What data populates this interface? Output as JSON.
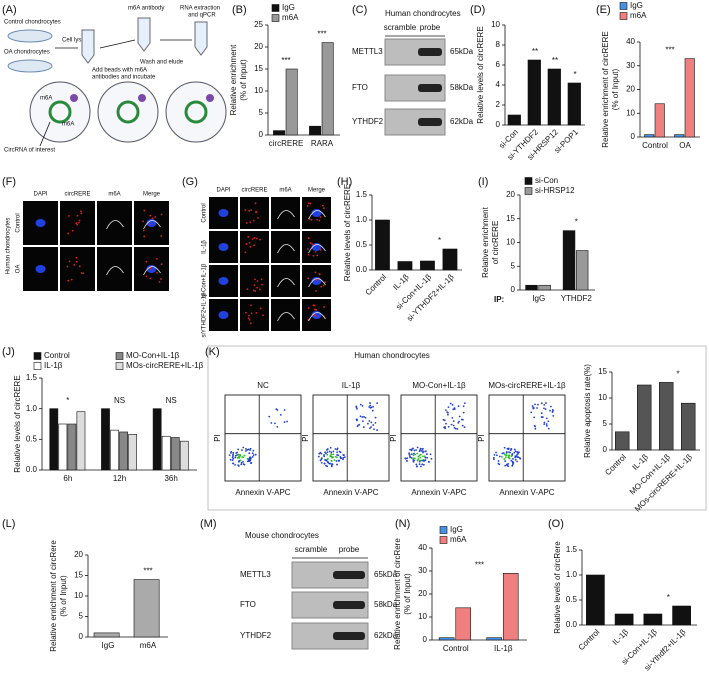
{
  "schematic": {
    "panel": "(A)",
    "labels": {
      "control": "Control chondrocytes",
      "oa": "OA chondrocytes",
      "lysates": "Cell lysates",
      "antibody": "m6A antibody",
      "beads": [
        "Add beads with m6A",
        "antibodies and incubate"
      ],
      "wash": "Wash and elude",
      "rna": [
        "RNA extraction",
        "and qPCR"
      ],
      "circ": "CircRNA of interest",
      "m6a": "m6A"
    }
  },
  "blots": [
    {
      "panel": "(C)",
      "title": "Human chondrocytes",
      "columns": [
        "scramble",
        "probe"
      ],
      "rows": [
        {
          "name": "METTL3",
          "size": "65kDa"
        },
        {
          "name": "FTO",
          "size": "58kDa"
        },
        {
          "name": "YTHDF2",
          "size": "62kDa"
        }
      ]
    },
    {
      "panel": "(M)",
      "title": "Mouse chondrocytes",
      "columns": [
        "scramble",
        "probe"
      ],
      "rows": [
        {
          "name": "METTL3",
          "size": "65kDa"
        },
        {
          "name": "FTO",
          "size": "58kDa"
        },
        {
          "name": "YTHDF2",
          "size": "62kDa"
        }
      ]
    }
  ],
  "images": [
    {
      "panel": "(F)",
      "side": "Human chondrocytes",
      "columns": [
        "DAPI",
        "circRERE",
        "m6A",
        "Merge"
      ],
      "rows": [
        "Control",
        "OA"
      ]
    },
    {
      "panel": "(G)",
      "columns": [
        "DAPI",
        "circRERE",
        "m6A",
        "Merge"
      ],
      "rows": [
        "Control",
        "IL-1β",
        "si-Con+IL-1β",
        "siYTHDF2+IL-1β"
      ]
    }
  ],
  "flow": {
    "panel": "(K)",
    "title": "Human chondrocytes",
    "xlabel": "Annexin V-APC",
    "ylabel": "PI",
    "plots": [
      "NC",
      "IL-1β",
      "MO-Con+IL-1β",
      "MOs-circRERE+IL-1β"
    ]
  },
  "chart_data": [
    {
      "panel": "(B)",
      "type": "bar",
      "categories": [
        "circRERE",
        "RARA"
      ],
      "series": [
        {
          "name": "IgG",
          "color": "#111111",
          "values": [
            1,
            2
          ]
        },
        {
          "name": "m6A",
          "color": "#999999",
          "values": [
            15,
            21
          ]
        }
      ],
      "ylim": [
        0,
        25
      ],
      "yticks": [
        0,
        5,
        10,
        15,
        20,
        25
      ],
      "ylabel": [
        "Relative enrichment",
        "(% of Input)"
      ],
      "annotations": [
        "***",
        "***"
      ]
    },
    {
      "panel": "(D)",
      "type": "bar",
      "categories": [
        "si-Con",
        "si-YTHDF2",
        "si-HRSP12",
        "si-POP1"
      ],
      "values": [
        1,
        6.5,
        5.6,
        4.2
      ],
      "color": "#111111",
      "ylim": [
        0,
        10
      ],
      "yticks": [
        0,
        2,
        4,
        6,
        8,
        10
      ],
      "ylabel": "Relative levels of circRERE",
      "annotations": [
        "**",
        "**",
        "*"
      ]
    },
    {
      "panel": "(E)",
      "type": "bar",
      "categories": [
        "Control",
        "OA"
      ],
      "series": [
        {
          "name": "IgG",
          "color": "#4a90e2",
          "values": [
            1,
            1
          ]
        },
        {
          "name": "m6A",
          "color": "#f08080",
          "values": [
            14,
            33
          ]
        }
      ],
      "ylim": [
        0,
        40
      ],
      "yticks": [
        0,
        10,
        20,
        30,
        40
      ],
      "ylabel": [
        "Relative enrichment of circRERE",
        "(% of Input)"
      ],
      "annotations": [
        "***"
      ]
    },
    {
      "panel": "(H)",
      "type": "bar",
      "categories": [
        "Control",
        "IL-1β",
        "si-Con+IL-1β",
        "si-YTHDF2+IL-1β"
      ],
      "values": [
        1.0,
        0.17,
        0.18,
        0.42
      ],
      "color": "#111111",
      "ylim": [
        0,
        1.5
      ],
      "yticks": [
        {
          "value": 0,
          "label": "0.0"
        },
        0.5,
        {
          "value": 1,
          "label": "1.0"
        },
        1.5
      ],
      "ylabel": "Relative levels of circRERE",
      "annotations": [
        "*"
      ]
    },
    {
      "panel": "(I)",
      "type": "bar",
      "categories": [
        "IgG",
        "YTHDF2"
      ],
      "series": [
        {
          "name": "si-Con",
          "color": "#111111",
          "values": [
            1,
            12.5
          ]
        },
        {
          "name": "si-HRSP12",
          "color": "#999999",
          "values": [
            1,
            8.3
          ]
        }
      ],
      "ylim": [
        0,
        20
      ],
      "yticks": [
        0,
        5,
        10,
        15,
        20
      ],
      "ylabel": [
        "Relative enrichment",
        "of circRERE"
      ],
      "ip_label": "IP:",
      "annotations": [
        "*"
      ]
    },
    {
      "panel": "(J)",
      "type": "bar",
      "categories": [
        "6h",
        "12h",
        "36h"
      ],
      "series": [
        {
          "name": "Control",
          "color": "#111111",
          "values": [
            1.0,
            1.0,
            1.0
          ]
        },
        {
          "name": "IL-1β",
          "color": "#ffffff",
          "values": [
            0.75,
            0.65,
            0.55
          ]
        },
        {
          "name": "MO-Con+IL-1β",
          "color": "#888888",
          "values": [
            0.75,
            0.62,
            0.53
          ]
        },
        {
          "name": "MOs-circRERE+IL-1β",
          "color": "#dddddd",
          "values": [
            0.95,
            0.58,
            0.47
          ]
        }
      ],
      "ylim": [
        0,
        1.5
      ],
      "yticks": [
        {
          "value": 0,
          "label": "0.0"
        },
        0.5,
        {
          "value": 1,
          "label": "1.0"
        },
        1.5
      ],
      "ylabel": "Relative levels of circRERE",
      "annotations": [
        "*",
        "NS",
        "NS"
      ]
    },
    {
      "type": "bar",
      "categories": [
        "Control",
        "IL-1β",
        "MO-Con+IL-1β",
        "MOs-circRERE+IL-1β"
      ],
      "values": [
        3.5,
        12.5,
        13,
        9
      ],
      "color": "#555555",
      "ylim": [
        0,
        15
      ],
      "yticks": [
        0,
        5,
        10,
        15
      ],
      "ylabel": "Relative apoptosis rate(%)",
      "annotations": [
        "*"
      ]
    },
    {
      "panel": "(L)",
      "type": "bar",
      "categories": [
        "IgG",
        "m6A"
      ],
      "values": [
        1,
        14
      ],
      "color": "#aaaaaa",
      "ylim": [
        0,
        20
      ],
      "yticks": [
        0,
        5,
        10,
        15,
        20
      ],
      "ylabel": [
        "Relative enrichment of circRere",
        "(% of Input)"
      ],
      "annotations": [
        "***"
      ]
    },
    {
      "panel": "(N)",
      "type": "bar",
      "categories": [
        "Control",
        "IL-1β"
      ],
      "series": [
        {
          "name": "IgG",
          "color": "#4a90e2",
          "values": [
            1,
            1
          ]
        },
        {
          "name": "m6A",
          "color": "#f08080",
          "values": [
            14,
            29
          ]
        }
      ],
      "ylim": [
        0,
        40
      ],
      "yticks": [
        0,
        10,
        20,
        30,
        40
      ],
      "ylabel": [
        "Relative enrichment of circRere",
        "(% of Input)"
      ],
      "annotations": [
        "***"
      ]
    },
    {
      "panel": "(O)",
      "type": "bar",
      "categories": [
        "Control",
        "IL-1β",
        "si-Con+IL-1β",
        "si-Ythdf2+IL-1β"
      ],
      "values": [
        1.0,
        0.22,
        0.22,
        0.38
      ],
      "color": "#111111",
      "ylim": [
        0,
        1.5
      ],
      "yticks": [
        {
          "value": 0,
          "label": "0.0"
        },
        0.5,
        {
          "value": 1,
          "label": "1.0"
        },
        1.5
      ],
      "ylabel": "Relative levels of circRere",
      "annotations": [
        "*"
      ]
    }
  ]
}
